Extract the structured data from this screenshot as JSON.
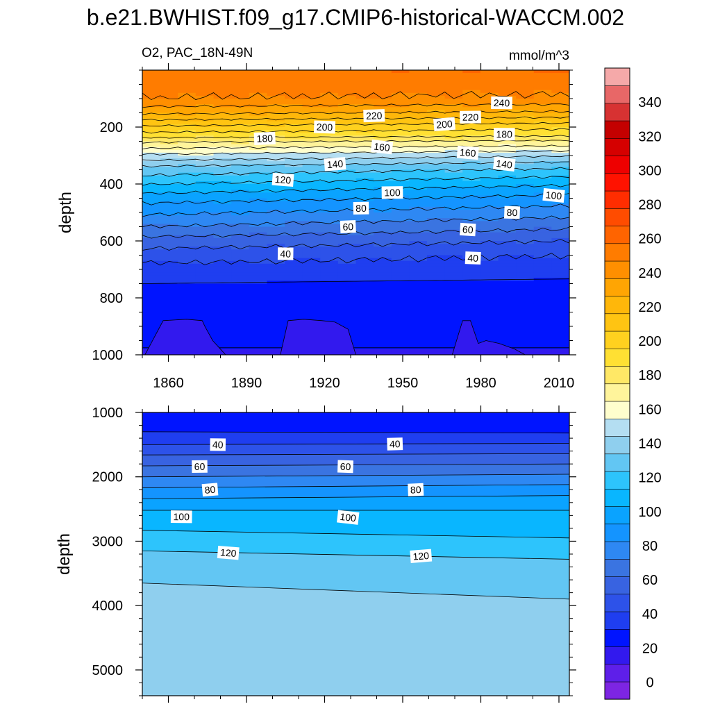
{
  "chart_data": {
    "type": "heatmap",
    "title": "b.e21.BWHIST.f09_g17.CMIP6-historical-WACCM.002",
    "left_string": "O2, PAC_18N-49N",
    "right_string": "mmol/m^3",
    "colorbar": {
      "min": -10,
      "max": 360,
      "step": 10,
      "tick_labels": [
        "0",
        "20",
        "40",
        "60",
        "80",
        "100",
        "120",
        "140",
        "160",
        "180",
        "200",
        "220",
        "240",
        "260",
        "280",
        "300",
        "320",
        "340"
      ],
      "colors": [
        "#7d25e3",
        "#5e1fe9",
        "#3219ee",
        "#0014ff",
        "#1f3ef0",
        "#2d52e9",
        "#3863e1",
        "#3a74e1",
        "#2e88f3",
        "#1494ff",
        "#0aa3ff",
        "#09b6ff",
        "#2dc4fc",
        "#62c6f3",
        "#8fcfee",
        "#b4def2",
        "#fffecd",
        "#fff49b",
        "#ffe866",
        "#ffe033",
        "#ffd11f",
        "#ffc412",
        "#ffb70a",
        "#ffa503",
        "#ff8f00",
        "#ff7c00",
        "#ff6400",
        "#ff4c00",
        "#ff2d00",
        "#ff1200",
        "#ee0000",
        "#d50000",
        "#c40000",
        "#d73232",
        "#e86767",
        "#f5a9a9"
      ]
    },
    "panels": [
      {
        "name": "upper",
        "ylabel": "depth",
        "xlim": [
          1850,
          2014
        ],
        "ylim": [
          0,
          1000
        ],
        "y_reversed": true,
        "xticks": [
          1860,
          1890,
          1920,
          1950,
          1980,
          2010
        ],
        "xtick_labels": [
          "1860",
          "1890",
          "1920",
          "1950",
          "1980",
          "2010"
        ],
        "yticks": [
          200,
          400,
          600,
          800,
          1000
        ],
        "ytick_labels": [
          "200",
          "400",
          "600",
          "800",
          "1000"
        ],
        "x_minor_step": 10,
        "y_minor_step": 50,
        "profile": {
          "depth": [
            0,
            10,
            40,
            100,
            150,
            200,
            230,
            250,
            270,
            300,
            340,
            380,
            420,
            460,
            500,
            550,
            600,
            650,
            700,
            750,
            850,
            950,
            1000
          ],
          "o2_early": [
            248,
            246,
            245,
            240,
            222,
            198,
            185,
            172,
            162,
            148,
            129,
            117,
            104,
            92,
            82,
            70,
            56,
            45,
            36,
            30,
            25,
            21,
            19
          ],
          "o2_late": [
            251,
            249,
            246,
            238,
            218,
            193,
            181,
            168,
            158,
            141,
            122,
            108,
            95,
            84,
            74,
            62,
            50,
            40,
            34,
            28,
            23,
            21,
            19
          ]
        },
        "low_patches": [
          {
            "x": [
              1851,
              1858,
              1867,
              1873,
              1874,
              1877,
              1880,
              1882
            ],
            "depth": [
              1000,
              880,
              875,
              880,
              900,
              950,
              980,
              1000
            ]
          },
          {
            "x": [
              1903,
              1906,
              1912,
              1919,
              1924,
              1929,
              1932,
              1930
            ],
            "depth": [
              1000,
              880,
              875,
              880,
              885,
              910,
              1000,
              1000
            ]
          },
          {
            "x": [
              1969,
              1973,
              1976,
              1979,
              1982,
              1987,
              1993,
              1997
            ],
            "depth": [
              1000,
              880,
              880,
              960,
              950,
              960,
              980,
              1000
            ]
          }
        ],
        "contour_labels": [
          {
            "text": "240",
            "x": 1988,
            "y": 115
          },
          {
            "text": "220",
            "x": 1939,
            "y": 160
          },
          {
            "text": "220",
            "x": 1976,
            "y": 165
          },
          {
            "text": "200",
            "x": 1920,
            "y": 200
          },
          {
            "text": "200",
            "x": 1966,
            "y": 190
          },
          {
            "text": "180",
            "x": 1897,
            "y": 240
          },
          {
            "text": "180",
            "x": 1989,
            "y": 225
          },
          {
            "text": "160",
            "x": 1942,
            "y": 270
          },
          {
            "text": "160",
            "x": 1975,
            "y": 290
          },
          {
            "text": "140",
            "x": 1924,
            "y": 330
          },
          {
            "text": "140",
            "x": 1989,
            "y": 330
          },
          {
            "text": "120",
            "x": 1904,
            "y": 385
          },
          {
            "text": "100",
            "x": 1946,
            "y": 430
          },
          {
            "text": "100",
            "x": 2008,
            "y": 440
          },
          {
            "text": "80",
            "x": 1934,
            "y": 485
          },
          {
            "text": "80",
            "x": 1992,
            "y": 500
          },
          {
            "text": "60",
            "x": 1929,
            "y": 550
          },
          {
            "text": "60",
            "x": 1975,
            "y": 560
          },
          {
            "text": "40",
            "x": 1905,
            "y": 645
          },
          {
            "text": "40",
            "x": 1977,
            "y": 660
          }
        ]
      },
      {
        "name": "lower",
        "ylabel": "depth",
        "xlim": [
          1850,
          2014
        ],
        "ylim": [
          1000,
          5400
        ],
        "y_reversed": true,
        "xticks": [
          1860,
          1890,
          1920,
          1950,
          1980,
          2010
        ],
        "yticks": [
          1000,
          2000,
          3000,
          4000,
          5000
        ],
        "ytick_labels": [
          "1000",
          "2000",
          "3000",
          "4000",
          "5000"
        ],
        "x_minor_step": 10,
        "y_minor_step": 200,
        "contours": [
          {
            "level": 30,
            "depth_start": 1300,
            "depth_end": 1320
          },
          {
            "level": 40,
            "depth_start": 1500,
            "depth_end": 1480
          },
          {
            "level": 50,
            "depth_start": 1660,
            "depth_end": 1640
          },
          {
            "level": 60,
            "depth_start": 1830,
            "depth_end": 1800
          },
          {
            "level": 70,
            "depth_start": 2000,
            "depth_end": 1960
          },
          {
            "level": 80,
            "depth_start": 2170,
            "depth_end": 2120
          },
          {
            "level": 90,
            "depth_start": 2340,
            "depth_end": 2290
          },
          {
            "level": 100,
            "depth_start": 2520,
            "depth_end": 2520
          },
          {
            "level": 110,
            "depth_start": 2830,
            "depth_end": 2950
          },
          {
            "level": 120,
            "depth_start": 3150,
            "depth_end": 3280
          },
          {
            "level": 130,
            "depth_start": 3650,
            "depth_end": 3900
          }
        ],
        "contour_labels": [
          {
            "text": "40",
            "x": 1879,
            "y": 1500
          },
          {
            "text": "40",
            "x": 1947,
            "y": 1490
          },
          {
            "text": "60",
            "x": 1872,
            "y": 1840
          },
          {
            "text": "60",
            "x": 1928,
            "y": 1840
          },
          {
            "text": "80",
            "x": 1876,
            "y": 2200
          },
          {
            "text": "80",
            "x": 1955,
            "y": 2200
          },
          {
            "text": "100",
            "x": 1865,
            "y": 2620
          },
          {
            "text": "100",
            "x": 1929,
            "y": 2630
          },
          {
            "text": "120",
            "x": 1883,
            "y": 3180
          },
          {
            "text": "120",
            "x": 1957,
            "y": 3230
          }
        ]
      }
    ]
  }
}
